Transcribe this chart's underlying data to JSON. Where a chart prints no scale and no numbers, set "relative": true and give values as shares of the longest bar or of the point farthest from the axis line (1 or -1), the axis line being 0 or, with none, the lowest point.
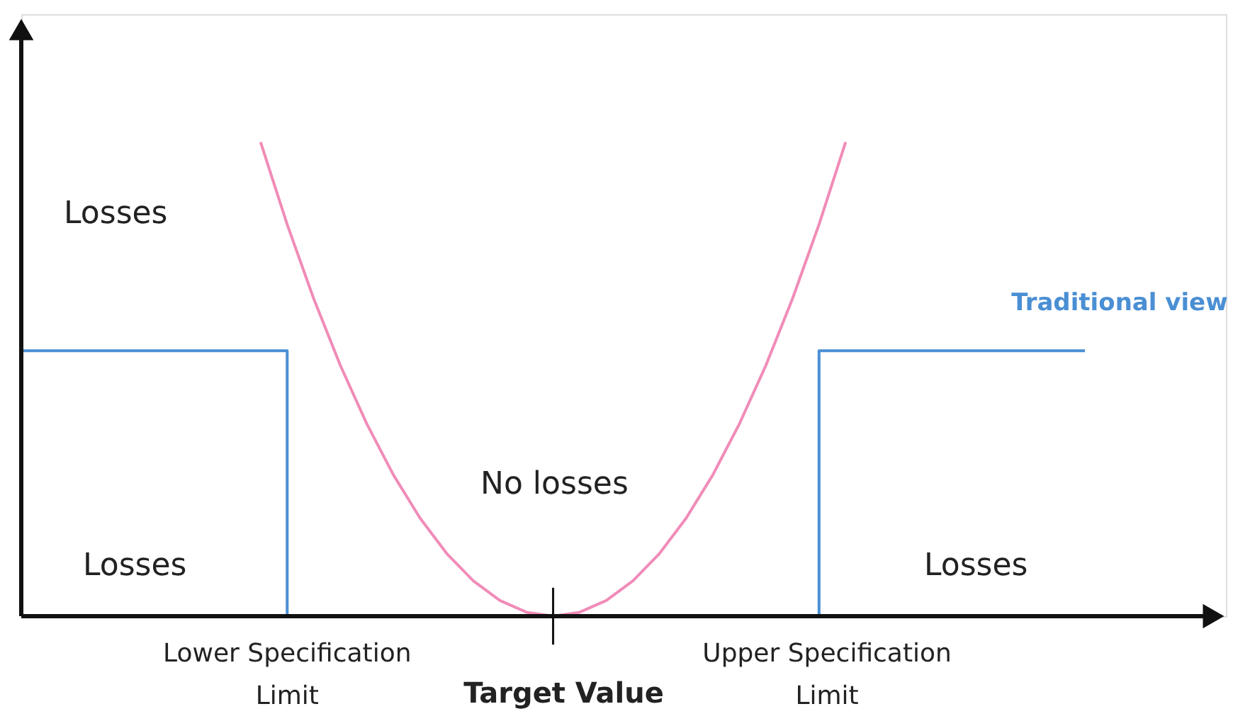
{
  "chart_data": {
    "type": "line",
    "relative": true,
    "categories": [
      null,
      null,
      null,
      null,
      null,
      null,
      null,
      null,
      null,
      null,
      null,
      null,
      null,
      null,
      null,
      null,
      null,
      null,
      null,
      null,
      null,
      null,
      null,
      null,
      null,
      null,
      null,
      null,
      null,
      null,
      null,
      null,
      null,
      null,
      null,
      null,
      null,
      null,
      null,
      null,
      null
    ],
    "series": [
      {
        "color": "#f08cb8",
        "values": [
          null,
          null,
          null,
          null,
          null,
          null,
          null,
          null,
          null,
          1,
          0.8264,
          0.6694,
          0.5289,
          0.405,
          0.2975,
          0.2066,
          0.1322,
          0.0744,
          0.0331,
          0.0083,
          0,
          0.0083,
          0.0331,
          0.0744,
          0.1322,
          0.2066,
          0.2975,
          0.405,
          0.5289,
          0.6694,
          0.8264,
          1,
          null,
          null,
          null,
          null,
          null,
          null,
          null,
          null,
          null
        ]
      },
      {
        "name": "Traditional view",
        "type": "step",
        "color": "#4a8fd4",
        "values": [
          0.56,
          0.56,
          0.56,
          0.56,
          0.56,
          0.56,
          0.56,
          0.56,
          0.56,
          0.56,
          0,
          0,
          0,
          0,
          0,
          0,
          0,
          0,
          0,
          0,
          0,
          0,
          0,
          0,
          0,
          0,
          0,
          0,
          0,
          0,
          0.56,
          0.56,
          0.56,
          0.56,
          0.56,
          0.56,
          0.56,
          0.56,
          0.56,
          0.56,
          0.56
        ]
      }
    ],
    "annotations": [
      "Losses",
      "Losses",
      "No losses",
      "Losses",
      "Lower Specification Limit",
      "Target Value",
      "Upper Specification Limit"
    ],
    "grid": false
  }
}
